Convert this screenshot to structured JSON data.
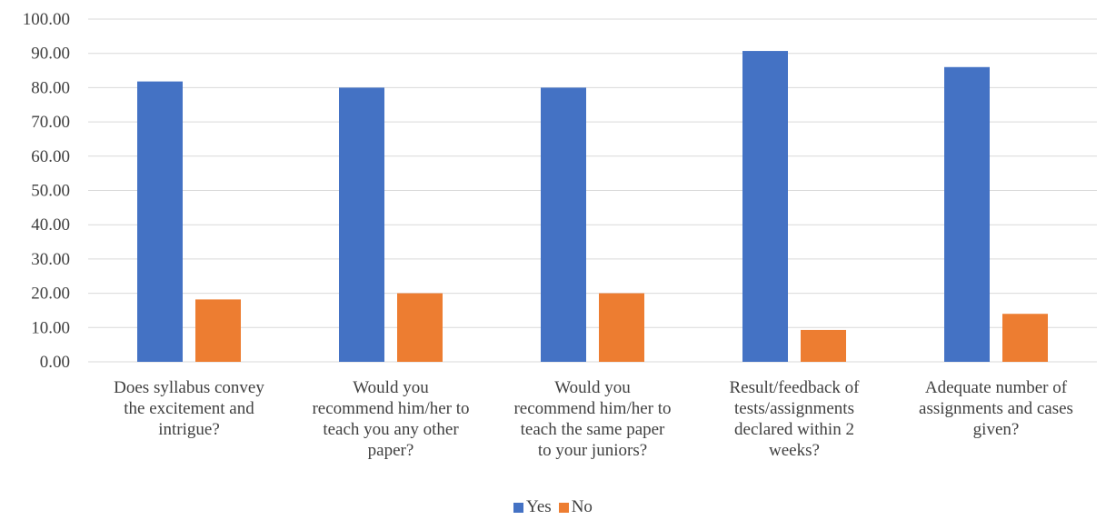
{
  "chart_data": {
    "type": "bar",
    "title": "",
    "xlabel": "",
    "ylabel": "",
    "ylim": [
      0,
      100
    ],
    "yticks": [
      "0.00",
      "10.00",
      "20.00",
      "30.00",
      "40.00",
      "50.00",
      "60.00",
      "70.00",
      "80.00",
      "90.00",
      "100.00"
    ],
    "grid": true,
    "legend_position": "bottom",
    "categories": [
      [
        "Does syllabus convey",
        "the excitement and",
        "intrigue?"
      ],
      [
        "Would you",
        "recommend him/her to",
        "teach you any other",
        "paper?"
      ],
      [
        "Would you",
        "recommend him/her to",
        "teach the same paper",
        "to your juniors?"
      ],
      [
        "Result/feedback of",
        "tests/assignments",
        "declared within 2",
        "weeks?"
      ],
      [
        "Adequate number of",
        "assignments and cases",
        "given?"
      ]
    ],
    "series": [
      {
        "name": "Yes",
        "color": "#4472C4",
        "values": [
          81.8,
          80.0,
          80.0,
          90.7,
          86.0
        ]
      },
      {
        "name": "No",
        "color": "#ED7D31",
        "values": [
          18.2,
          20.0,
          20.0,
          9.3,
          14.0
        ]
      }
    ]
  }
}
